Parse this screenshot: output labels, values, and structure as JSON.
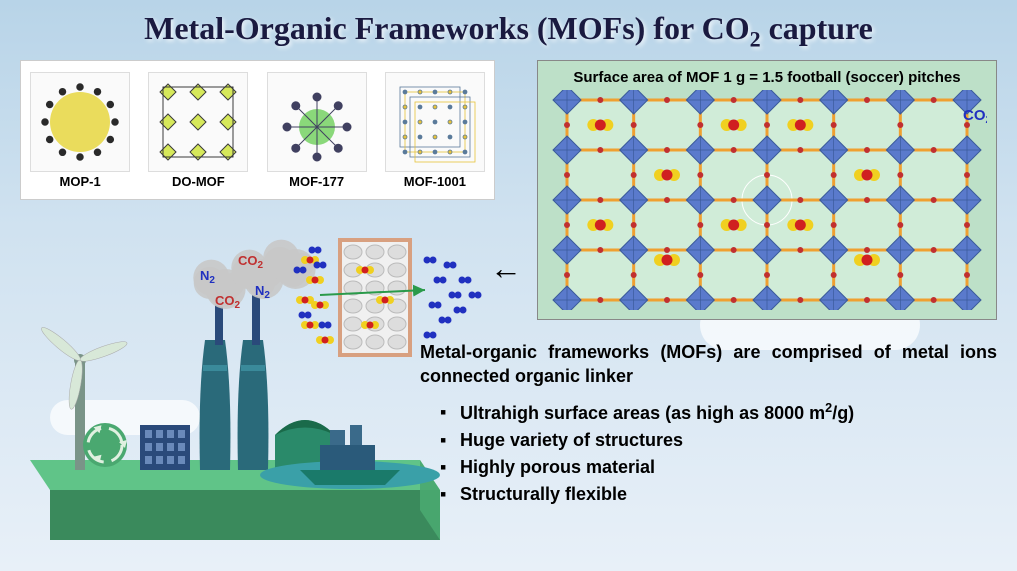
{
  "title": {
    "pre": "Metal-Organic Frameworks (MOFs) for CO",
    "sub": "2",
    "post": " capture",
    "color": "#1a1a40"
  },
  "mof_strip": {
    "items": [
      {
        "label": "MOP-1",
        "accent": "#e8d84a",
        "dark": "#2a2a2a"
      },
      {
        "label": "DO-MOF",
        "accent": "#d6e85a",
        "dark": "#3a3a3a"
      },
      {
        "label": "MOF-177",
        "accent": "#6ecf5a",
        "dark": "#404060"
      },
      {
        "label": "MOF-1001",
        "accent": "#e8c23a",
        "dark": "#5a7a9a"
      }
    ]
  },
  "lattice": {
    "caption": "Surface area of MOF 1 g = 1.5 football (soccer) pitches",
    "bg": "#bde0c8",
    "grid_color": "#f0a030",
    "node_fill": "#5a7acc",
    "node_edge": "#3a5a9a",
    "dot_color": "#c03030",
    "co2_c": "#d02020",
    "co2_o": "#f0d020",
    "co2_label": "CO",
    "co2_sub": "2",
    "rows": 4,
    "cols": 6,
    "co2_positions": [
      [
        0.5,
        0.5
      ],
      [
        2.5,
        0.5
      ],
      [
        3.5,
        0.5
      ],
      [
        1.5,
        1.5
      ],
      [
        4.5,
        1.5
      ],
      [
        0.5,
        2.5
      ],
      [
        2.5,
        2.5
      ],
      [
        3.5,
        2.5
      ],
      [
        1.5,
        3.2
      ],
      [
        4.5,
        3.2
      ]
    ]
  },
  "factory": {
    "ground": "#60c488",
    "ground_side": "#4aa870",
    "ground_front": "#3a8a5c",
    "water": "#3aa0a8",
    "wind_tower": "#7a9488",
    "wind_blade": "#d8e8d8",
    "stack1": "#2a6a7a",
    "stack1_band": "#3a8a9a",
    "bldg1": "#2a4a7a",
    "bldg2": "#3a6a8a",
    "bldg3": "#2a8a6a",
    "bldg3_roof": "#1a6a4a",
    "ship": "#1a7a6a",
    "ship_top": "#2a5a7a",
    "smoke": "#c8c8c8",
    "recycle_bg": "#4aa870",
    "recycle": "#e0f0e0",
    "filter_bg": "#f0f0f0",
    "filter_edge": "#d8a080",
    "mol_n2": "#2030c0",
    "mol_co2_c": "#d02020",
    "mol_co2_o": "#f0d020",
    "labels": {
      "co2": "CO",
      "co2_sub": "2",
      "co2_color": "#c03030",
      "n2": "N",
      "n2_sub": "2",
      "n2_color": "#2030c0"
    }
  },
  "desc": {
    "lead": "Metal-organic frameworks (MOFs) are comprised of metal ions connected organic linker",
    "items": [
      {
        "pre": "Ultrahigh surface areas (as high as 8000 m",
        "sup": "2",
        "post": "/g)"
      },
      {
        "pre": "Huge variety of structures"
      },
      {
        "pre": "Highly porous material"
      },
      {
        "pre": "Structurally flexible"
      }
    ]
  }
}
